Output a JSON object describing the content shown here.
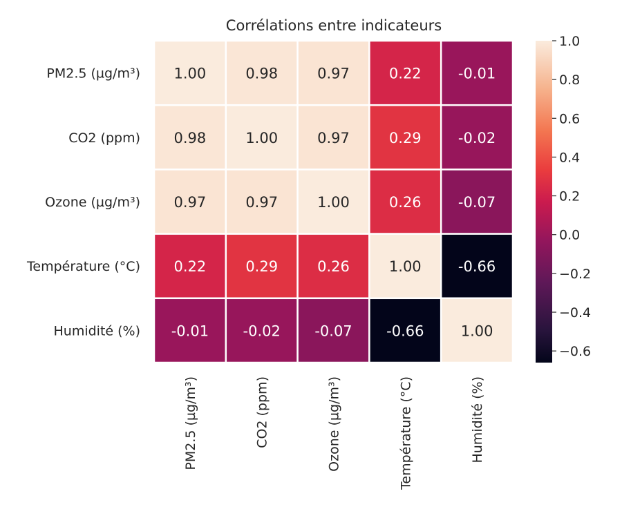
{
  "chart_data": {
    "type": "heatmap",
    "title": "Corrélations entre indicateurs",
    "row_labels": [
      "PM2.5 (µg/m³)",
      "CO2 (ppm)",
      "Ozone (µg/m³)",
      "Température (°C)",
      "Humidité (%)"
    ],
    "col_labels": [
      "PM2.5 (µg/m³)",
      "CO2 (ppm)",
      "Ozone (µg/m³)",
      "Température (°C)",
      "Humidité (%)"
    ],
    "values": [
      [
        1.0,
        0.98,
        0.97,
        0.22,
        -0.01
      ],
      [
        0.98,
        1.0,
        0.97,
        0.29,
        -0.02
      ],
      [
        0.97,
        0.97,
        1.0,
        0.26,
        -0.07
      ],
      [
        0.22,
        0.29,
        0.26,
        1.0,
        -0.66
      ],
      [
        -0.01,
        -0.02,
        -0.07,
        -0.66,
        1.0
      ]
    ],
    "cell_labels": [
      [
        "1.00",
        "0.98",
        "0.97",
        "0.22",
        "-0.01"
      ],
      [
        "0.98",
        "1.00",
        "0.97",
        "0.29",
        "-0.02"
      ],
      [
        "0.97",
        "0.97",
        "1.00",
        "0.26",
        "-0.07"
      ],
      [
        "0.22",
        "0.29",
        "0.26",
        "1.00",
        "-0.66"
      ],
      [
        "-0.01",
        "-0.02",
        "-0.07",
        "-0.66",
        "1.00"
      ]
    ],
    "colorbar": {
      "range": [
        -0.66,
        1.0
      ],
      "ticks": [
        1.0,
        0.8,
        0.6,
        0.4,
        0.2,
        0.0,
        -0.2,
        -0.4,
        -0.6
      ],
      "tick_labels": [
        "1.0",
        "0.8",
        "0.6",
        "0.4",
        "0.2",
        "0.0",
        "−0.2",
        "−0.4",
        "−0.6"
      ],
      "colormap": "rocket"
    }
  }
}
